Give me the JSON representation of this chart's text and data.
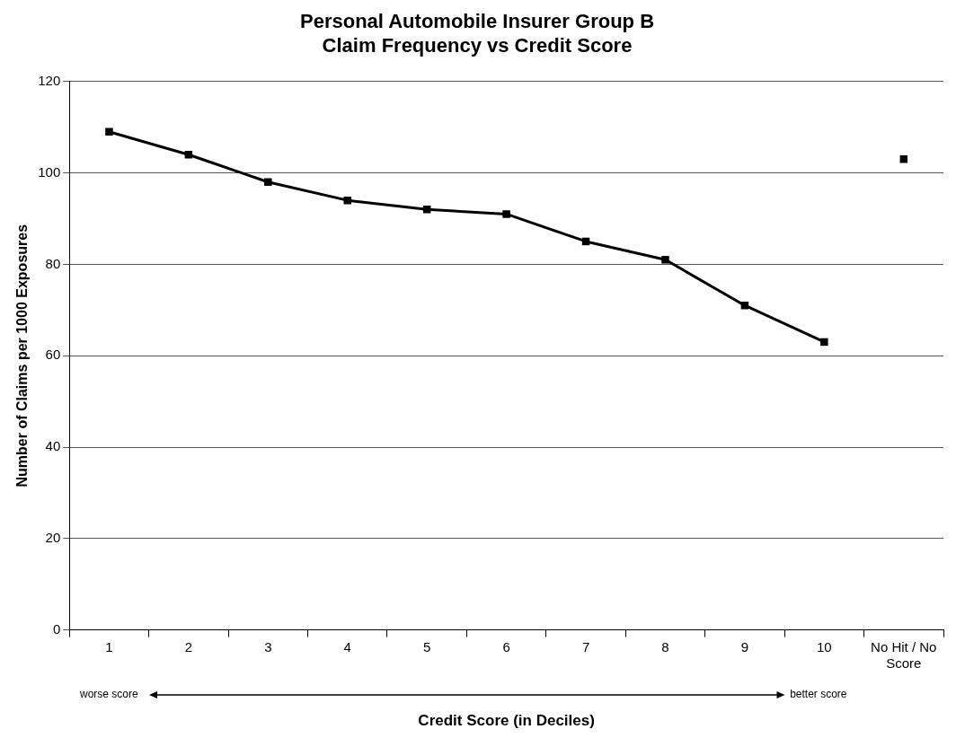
{
  "chart_data": {
    "type": "line",
    "title": "Personal Automobile Insurer Group B\nClaim Frequency vs Credit Score",
    "xlabel": "Credit Score (in Deciles)",
    "ylabel": "Number of Claims per 1000 Exposures",
    "categories": [
      "1",
      "2",
      "3",
      "4",
      "5",
      "6",
      "7",
      "8",
      "9",
      "10",
      "No Hit / No Score"
    ],
    "series": [
      {
        "type": "line",
        "color": "#000000",
        "values": [
          109,
          104,
          98,
          94,
          92,
          91,
          85,
          81,
          71,
          63,
          null
        ]
      },
      {
        "type": "scatter",
        "color": "#000000",
        "values": [
          null,
          null,
          null,
          null,
          null,
          null,
          null,
          null,
          null,
          null,
          103
        ]
      }
    ],
    "ylim": [
      0,
      120
    ],
    "yticks": [
      0,
      20,
      40,
      60,
      80,
      100,
      120
    ],
    "grid": "y",
    "legend": false,
    "marker": "square",
    "line_style": "solid",
    "annotations": [
      "worse score",
      "better score"
    ]
  }
}
